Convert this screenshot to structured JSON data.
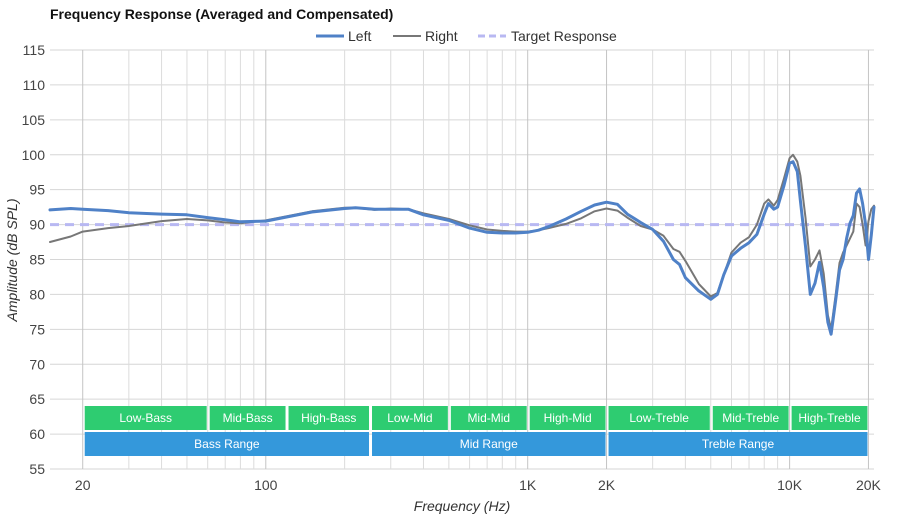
{
  "chart_data": {
    "type": "line",
    "title": "Frequency Response (Averaged and Compensated)",
    "xlabel": "Frequency (Hz)",
    "ylabel": "Amplitude (dB SPL)",
    "x_scale": "log",
    "xlim": [
      15,
      21000
    ],
    "ylim": [
      55,
      115
    ],
    "grid": true,
    "legend_position": "top-center",
    "y_ticks": [
      55,
      60,
      65,
      70,
      75,
      80,
      85,
      90,
      95,
      100,
      105,
      110,
      115
    ],
    "x_ticks": [
      {
        "value": 20,
        "label": "20"
      },
      {
        "value": 100,
        "label": "100"
      },
      {
        "value": 1000,
        "label": "1K"
      },
      {
        "value": 2000,
        "label": "2K"
      },
      {
        "value": 10000,
        "label": "10K"
      },
      {
        "value": 20000,
        "label": "20K"
      }
    ],
    "series": [
      {
        "name": "Right",
        "color": "#777777",
        "style": "solid",
        "points": [
          [
            15,
            87.5
          ],
          [
            18,
            88.3
          ],
          [
            20,
            89
          ],
          [
            25,
            89.5
          ],
          [
            30,
            89.8
          ],
          [
            40,
            90.5
          ],
          [
            50,
            90.8
          ],
          [
            60,
            90.6
          ],
          [
            70,
            90.3
          ],
          [
            80,
            90.2
          ],
          [
            100,
            90.6
          ],
          [
            150,
            91.9
          ],
          [
            200,
            92.4
          ],
          [
            220,
            92.4
          ],
          [
            260,
            92.1
          ],
          [
            300,
            92.3
          ],
          [
            350,
            92.2
          ],
          [
            400,
            91.6
          ],
          [
            500,
            90.8
          ],
          [
            600,
            89.9
          ],
          [
            700,
            89.3
          ],
          [
            800,
            89.1
          ],
          [
            900,
            89
          ],
          [
            1000,
            89
          ],
          [
            1100,
            89.2
          ],
          [
            1200,
            89.5
          ],
          [
            1400,
            90.1
          ],
          [
            1600,
            90.9
          ],
          [
            1800,
            91.9
          ],
          [
            2000,
            92.3
          ],
          [
            2200,
            92
          ],
          [
            2400,
            91
          ],
          [
            2700,
            89.8
          ],
          [
            3000,
            89.3
          ],
          [
            3300,
            88.4
          ],
          [
            3600,
            86.5
          ],
          [
            3800,
            86.1
          ],
          [
            4000,
            84.8
          ],
          [
            4500,
            81.5
          ],
          [
            5000,
            79.7
          ],
          [
            5300,
            80.2
          ],
          [
            5600,
            82.8
          ],
          [
            6000,
            86
          ],
          [
            6500,
            87.4
          ],
          [
            7000,
            88.2
          ],
          [
            7500,
            90
          ],
          [
            8000,
            93
          ],
          [
            8300,
            93.6
          ],
          [
            8700,
            92.7
          ],
          [
            9000,
            93.5
          ],
          [
            9500,
            96.5
          ],
          [
            10000,
            99.5
          ],
          [
            10300,
            100
          ],
          [
            10700,
            99
          ],
          [
            11000,
            97
          ],
          [
            11500,
            91
          ],
          [
            12000,
            84
          ],
          [
            12500,
            85
          ],
          [
            13000,
            86.3
          ],
          [
            13500,
            83
          ],
          [
            14000,
            77
          ],
          [
            14400,
            75
          ],
          [
            15000,
            80
          ],
          [
            15500,
            84.5
          ],
          [
            16000,
            86
          ],
          [
            16500,
            87
          ],
          [
            17000,
            88
          ],
          [
            17500,
            89
          ],
          [
            18000,
            93
          ],
          [
            18500,
            92.5
          ],
          [
            19000,
            90
          ],
          [
            19500,
            87
          ],
          [
            20000,
            90.5
          ],
          [
            20500,
            92.2
          ],
          [
            21000,
            92.7
          ]
        ]
      },
      {
        "name": "Left",
        "color": "#4f81c7",
        "style": "solid",
        "points": [
          [
            15,
            92.1
          ],
          [
            18,
            92.3
          ],
          [
            20,
            92.2
          ],
          [
            25,
            92.0
          ],
          [
            30,
            91.7
          ],
          [
            40,
            91.5
          ],
          [
            50,
            91.4
          ],
          [
            60,
            91.0
          ],
          [
            70,
            90.7
          ],
          [
            80,
            90.4
          ],
          [
            100,
            90.5
          ],
          [
            150,
            91.8
          ],
          [
            200,
            92.3
          ],
          [
            220,
            92.4
          ],
          [
            260,
            92.2
          ],
          [
            300,
            92.2
          ],
          [
            350,
            92.2
          ],
          [
            400,
            91.4
          ],
          [
            500,
            90.6
          ],
          [
            600,
            89.5
          ],
          [
            700,
            88.9
          ],
          [
            800,
            88.8
          ],
          [
            900,
            88.8
          ],
          [
            1000,
            88.9
          ],
          [
            1100,
            89.2
          ],
          [
            1200,
            89.7
          ],
          [
            1400,
            90.8
          ],
          [
            1600,
            91.9
          ],
          [
            1800,
            92.8
          ],
          [
            2000,
            93.2
          ],
          [
            2200,
            92.9
          ],
          [
            2400,
            91.5
          ],
          [
            2700,
            90.3
          ],
          [
            3000,
            89.3
          ],
          [
            3300,
            87.6
          ],
          [
            3600,
            85
          ],
          [
            3800,
            84.3
          ],
          [
            4000,
            82.4
          ],
          [
            4500,
            80.5
          ],
          [
            5000,
            79.3
          ],
          [
            5300,
            80
          ],
          [
            5600,
            82.8
          ],
          [
            6000,
            85.5
          ],
          [
            6500,
            86.6
          ],
          [
            7000,
            87.4
          ],
          [
            7500,
            88.6
          ],
          [
            8000,
            91.5
          ],
          [
            8300,
            93
          ],
          [
            8700,
            92.2
          ],
          [
            9000,
            92.5
          ],
          [
            9500,
            95.5
          ],
          [
            10000,
            98.8
          ],
          [
            10300,
            99
          ],
          [
            10700,
            97.6
          ],
          [
            11000,
            93.4
          ],
          [
            11500,
            86.9
          ],
          [
            12000,
            80
          ],
          [
            12500,
            81.6
          ],
          [
            13000,
            84.6
          ],
          [
            13500,
            81
          ],
          [
            14000,
            76
          ],
          [
            14400,
            74.3
          ],
          [
            15000,
            79.2
          ],
          [
            15500,
            83.5
          ],
          [
            16000,
            85
          ],
          [
            16500,
            88
          ],
          [
            17000,
            90.2
          ],
          [
            17500,
            91.3
          ],
          [
            18000,
            94.5
          ],
          [
            18500,
            95.1
          ],
          [
            19000,
            93
          ],
          [
            19500,
            90
          ],
          [
            20000,
            85
          ],
          [
            20500,
            88.5
          ],
          [
            21000,
            92.5
          ]
        ]
      },
      {
        "name": "Target Response",
        "color": "#b8b8f2",
        "style": "dashed",
        "points": [
          [
            15,
            90
          ],
          [
            21000,
            90
          ]
        ]
      }
    ],
    "bands_top": [
      {
        "label": "Low-Bass",
        "from": 20,
        "to": 60,
        "color": "#2ecc71"
      },
      {
        "label": "Mid-Bass",
        "from": 60,
        "to": 120,
        "color": "#2ecc71"
      },
      {
        "label": "High-Bass",
        "from": 120,
        "to": 250,
        "color": "#2ecc71"
      },
      {
        "label": "Low-Mid",
        "from": 250,
        "to": 500,
        "color": "#2ecc71"
      },
      {
        "label": "Mid-Mid",
        "from": 500,
        "to": 1000,
        "color": "#2ecc71"
      },
      {
        "label": "High-Mid",
        "from": 1000,
        "to": 2000,
        "color": "#2ecc71"
      },
      {
        "label": "Low-Treble",
        "from": 2000,
        "to": 5000,
        "color": "#2ecc71"
      },
      {
        "label": "Mid-Treble",
        "from": 5000,
        "to": 10000,
        "color": "#2ecc71"
      },
      {
        "label": "High-Treble",
        "from": 10000,
        "to": 20000,
        "color": "#2ecc71"
      }
    ],
    "bands_bottom": [
      {
        "label": "Bass Range",
        "from": 20,
        "to": 250,
        "color": "#3498db"
      },
      {
        "label": "Mid Range",
        "from": 250,
        "to": 2000,
        "color": "#3498db"
      },
      {
        "label": "Treble Range",
        "from": 2000,
        "to": 20000,
        "color": "#3498db"
      }
    ]
  }
}
